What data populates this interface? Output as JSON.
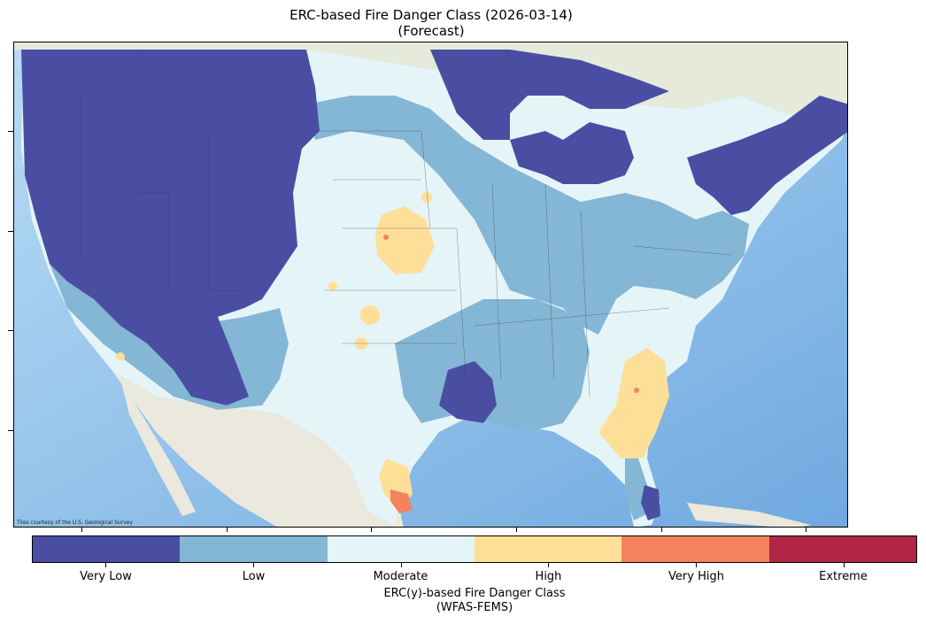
{
  "title": {
    "line1": "ERC-based Fire Danger Class (2026-03-14)",
    "line2": "(Forecast)"
  },
  "map": {
    "attribution": "Tiles courtesy of the U.S. Geological Survey",
    "colors": {
      "ocean": "#8ec3ec",
      "land": "#eceae0",
      "lakes": "#a9d2f0"
    }
  },
  "colorbar": {
    "title_line1": "ERC(y)-based Fire Danger Class",
    "title_line2": "(WFAS-FEMS)",
    "classes": [
      {
        "label": "Very Low",
        "color": "#4a4ea3"
      },
      {
        "label": "Low",
        "color": "#84b6d5"
      },
      {
        "label": "Moderate",
        "color": "#e5f4f7"
      },
      {
        "label": "High",
        "color": "#fddf98"
      },
      {
        "label": "Very High",
        "color": "#f4825d"
      },
      {
        "label": "Extreme",
        "color": "#b22544"
      }
    ]
  }
}
